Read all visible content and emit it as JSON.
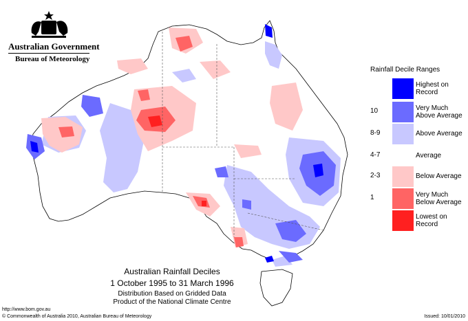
{
  "header": {
    "agency": "Australian Government",
    "bureau": "Bureau of Meteorology"
  },
  "legend": {
    "title": "Rainfall Decile Ranges",
    "items": [
      {
        "range": "",
        "label": "Highest on Record",
        "color": "#0000ff"
      },
      {
        "range": "10",
        "label": "Very Much Above Average",
        "color": "#6b6bff"
      },
      {
        "range": "8-9",
        "label": "Above Average",
        "color": "#c8c8ff"
      },
      {
        "range": "4-7",
        "label": "Average",
        "color": "#ffffff"
      },
      {
        "range": "2-3",
        "label": "Below Average",
        "color": "#ffc8c8"
      },
      {
        "range": "1",
        "label": "Very Much Below Average",
        "color": "#ff6464"
      },
      {
        "range": "",
        "label": "Lowest on Record",
        "color": "#ff2020"
      }
    ]
  },
  "caption": {
    "title": "Australian Rainfall Deciles",
    "dates": "1 October 1995 to 31 March 1996",
    "note1": "Distribution Based on Gridded Data",
    "note2": "Product of the National Climate Centre"
  },
  "footer": {
    "url": "http://www.bom.gov.au",
    "copyright": "© Commonwealth of Australia 2010, Australian Bureau of Meteorology",
    "issued": "Issued: 10/01/2010"
  }
}
